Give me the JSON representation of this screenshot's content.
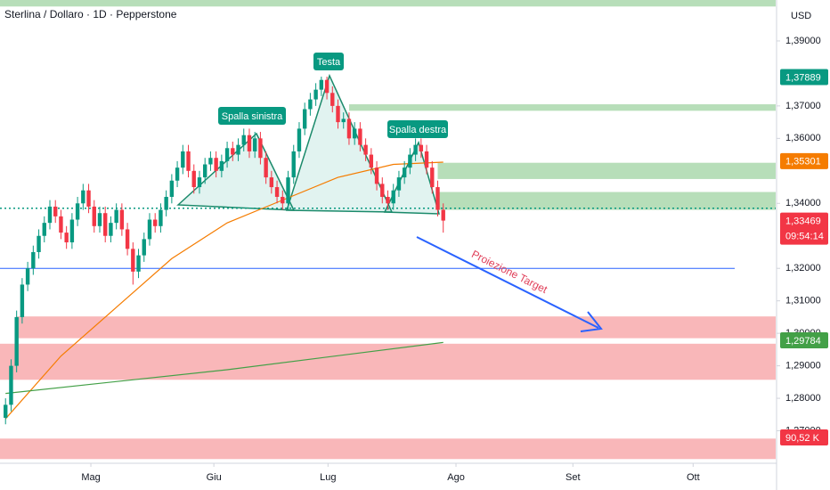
{
  "chart_data": {
    "type": "candlestick",
    "title": "Sterlina / Dollaro · 1D · Pepperstone",
    "currency": "USD",
    "up_color": "#089981",
    "down_color": "#f23645",
    "x": [
      0,
      1,
      2,
      3,
      4,
      5,
      6,
      7,
      8,
      9,
      10,
      11,
      12,
      13,
      14,
      15,
      16,
      17,
      18,
      19,
      20,
      21,
      22,
      23,
      24,
      25,
      26,
      27,
      28,
      29,
      30,
      31,
      32,
      33,
      34,
      35,
      36,
      37,
      38,
      39,
      40,
      41,
      42,
      43,
      44,
      45,
      46,
      47,
      48,
      49,
      50,
      51,
      52,
      53,
      54,
      55,
      56,
      57,
      58,
      59,
      60,
      61,
      62,
      63,
      64,
      65,
      66,
      67,
      68,
      69,
      70,
      71,
      72,
      73,
      74,
      75,
      76,
      77,
      78,
      79
    ],
    "open": [
      1.274,
      1.278,
      1.29,
      1.305,
      1.315,
      1.32,
      1.325,
      1.33,
      1.334,
      1.339,
      1.336,
      1.331,
      1.328,
      1.335,
      1.34,
      1.344,
      1.339,
      1.333,
      1.337,
      1.33,
      1.334,
      1.338,
      1.332,
      1.326,
      1.319,
      1.324,
      1.329,
      1.335,
      1.333,
      1.338,
      1.342,
      1.347,
      1.351,
      1.356,
      1.35,
      1.345,
      1.348,
      1.352,
      1.354,
      1.35,
      1.353,
      1.357,
      1.355,
      1.358,
      1.361,
      1.356,
      1.36,
      1.354,
      1.348,
      1.345,
      1.342,
      1.34,
      1.348,
      1.356,
      1.363,
      1.369,
      1.372,
      1.375,
      1.378,
      1.374,
      1.37,
      1.365,
      1.366,
      1.36,
      1.363,
      1.358,
      1.355,
      1.351,
      1.346,
      1.342,
      1.34,
      1.344,
      1.348,
      1.351,
      1.355,
      1.358,
      1.356,
      1.351,
      1.345,
      1.338
    ],
    "high": [
      1.28,
      1.292,
      1.307,
      1.317,
      1.322,
      1.327,
      1.332,
      1.336,
      1.341,
      1.341,
      1.338,
      1.333,
      1.337,
      1.342,
      1.346,
      1.346,
      1.341,
      1.339,
      1.339,
      1.336,
      1.34,
      1.34,
      1.334,
      1.328,
      1.326,
      1.331,
      1.337,
      1.337,
      1.34,
      1.344,
      1.349,
      1.353,
      1.358,
      1.358,
      1.352,
      1.35,
      1.354,
      1.356,
      1.356,
      1.355,
      1.359,
      1.359,
      1.36,
      1.363,
      1.363,
      1.362,
      1.362,
      1.356,
      1.35,
      1.347,
      1.344,
      1.35,
      1.358,
      1.365,
      1.371,
      1.374,
      1.377,
      1.379,
      1.379,
      1.376,
      1.372,
      1.368,
      1.368,
      1.365,
      1.365,
      1.36,
      1.357,
      1.353,
      1.348,
      1.344,
      1.346,
      1.35,
      1.353,
      1.357,
      1.36,
      1.36,
      1.358,
      1.353,
      1.347,
      1.34
    ],
    "low": [
      1.272,
      1.276,
      1.288,
      1.303,
      1.313,
      1.318,
      1.323,
      1.328,
      1.332,
      1.334,
      1.329,
      1.326,
      1.326,
      1.333,
      1.338,
      1.337,
      1.331,
      1.331,
      1.328,
      1.328,
      1.332,
      1.33,
      1.324,
      1.315,
      1.317,
      1.322,
      1.327,
      1.331,
      1.331,
      1.336,
      1.34,
      1.345,
      1.349,
      1.348,
      1.343,
      1.343,
      1.346,
      1.35,
      1.348,
      1.348,
      1.351,
      1.353,
      1.353,
      1.356,
      1.354,
      1.354,
      1.352,
      1.346,
      1.343,
      1.34,
      1.338,
      1.338,
      1.346,
      1.354,
      1.361,
      1.367,
      1.37,
      1.373,
      1.372,
      1.368,
      1.363,
      1.363,
      1.358,
      1.358,
      1.356,
      1.353,
      1.349,
      1.344,
      1.34,
      1.338,
      1.338,
      1.342,
      1.346,
      1.349,
      1.353,
      1.354,
      1.349,
      1.343,
      1.336,
      1.331
    ],
    "close": [
      1.278,
      1.29,
      1.305,
      1.315,
      1.32,
      1.325,
      1.33,
      1.334,
      1.339,
      1.336,
      1.331,
      1.328,
      1.335,
      1.34,
      1.344,
      1.339,
      1.333,
      1.337,
      1.33,
      1.334,
      1.338,
      1.332,
      1.326,
      1.319,
      1.324,
      1.329,
      1.335,
      1.333,
      1.338,
      1.342,
      1.347,
      1.351,
      1.356,
      1.35,
      1.345,
      1.348,
      1.352,
      1.354,
      1.35,
      1.353,
      1.357,
      1.355,
      1.358,
      1.361,
      1.356,
      1.36,
      1.354,
      1.348,
      1.345,
      1.342,
      1.34,
      1.348,
      1.356,
      1.363,
      1.369,
      1.372,
      1.375,
      1.378,
      1.374,
      1.37,
      1.365,
      1.366,
      1.36,
      1.363,
      1.358,
      1.355,
      1.351,
      1.346,
      1.342,
      1.34,
      1.344,
      1.348,
      1.351,
      1.355,
      1.358,
      1.356,
      1.351,
      1.345,
      1.338,
      1.3347
    ],
    "xlim": [
      -1,
      139
    ],
    "xticks": [
      {
        "value": 15.4,
        "label": "Mag"
      },
      {
        "value": 37.6,
        "label": "Giu"
      },
      {
        "value": 58.2,
        "label": "Lug"
      },
      {
        "value": 81.3,
        "label": "Ago"
      },
      {
        "value": 102.4,
        "label": "Set"
      },
      {
        "value": 124.1,
        "label": "Ott"
      }
    ],
    "ylim": [
      1.26,
      1.4026
    ],
    "yticks": [
      {
        "value": 1.39,
        "label": "1,39000"
      },
      {
        "value": 1.37,
        "label": "1,37000"
      },
      {
        "value": 1.36,
        "label": "1,36000"
      },
      {
        "value": 1.34,
        "label": "1,34000"
      },
      {
        "value": 1.32,
        "label": "1,32000"
      },
      {
        "value": 1.31,
        "label": "1,31000"
      },
      {
        "value": 1.3,
        "label": "1,30000"
      },
      {
        "value": 1.29,
        "label": "1,29000"
      },
      {
        "value": 1.28,
        "label": "1,28000"
      },
      {
        "value": 1.27,
        "label": "1,27000"
      }
    ],
    "overlays": [
      {
        "color": "#f57c00",
        "x": [
          0,
          10,
          20,
          30,
          40,
          50,
          60,
          70,
          79
        ],
        "values": [
          1.2737,
          1.293,
          1.308,
          1.323,
          1.334,
          1.341,
          1.348,
          1.352,
          1.3527
        ]
      },
      {
        "color": "#43a047",
        "x": [
          0,
          40,
          79
        ],
        "values": [
          1.2815,
          1.2888,
          1.2972
        ]
      }
    ],
    "zones": [
      {
        "from": -1,
        "low": 1.4006,
        "high": 1.4026,
        "color": "#a5d6a7"
      },
      {
        "from": 62,
        "low": 1.3685,
        "high": 1.3705,
        "color": "#a5d6a7"
      },
      {
        "from": 78,
        "low": 1.3475,
        "high": 1.3525,
        "color": "#a5d6a7"
      },
      {
        "from": 78,
        "low": 1.338,
        "high": 1.3435,
        "color": "#a5d6a7"
      },
      {
        "from": 2,
        "low": 1.2985,
        "high": 1.3052,
        "color": "#f8a5a8"
      },
      {
        "from": -1,
        "low": 1.2857,
        "high": 1.2968,
        "color": "#f8a5a8"
      },
      {
        "from": -1,
        "low": 1.2613,
        "high": 1.2676,
        "color": "#f8a5a8"
      }
    ],
    "levels": [
      {
        "value": 1.3385,
        "color": "#089981",
        "dash": "2,3"
      },
      {
        "value": 1.32,
        "color": "#2962ff",
        "dash": "none"
      }
    ],
    "price_labels": [
      {
        "value": 1.37889,
        "label": "1,37889",
        "color": "#089981"
      },
      {
        "value": 1.35301,
        "label": "1,35301",
        "color": "#f57c00"
      },
      {
        "value": 1.33469,
        "label": "1,33469",
        "color": "#f23645"
      },
      {
        "value": 1.29784,
        "label": "1,29784",
        "color": "#43a047"
      }
    ],
    "countdown": "09:54:14",
    "volume_label": "90,52 K",
    "annotations": {
      "left_shoulder": "Spalla sinistra",
      "head": "Testa",
      "right_shoulder": "Spalla destra",
      "target": "Proiezione Target"
    }
  }
}
